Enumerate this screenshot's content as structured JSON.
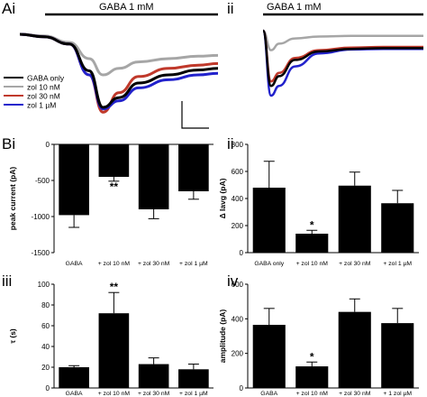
{
  "panel_labels": {
    "ai": "Ai",
    "aii": "ii",
    "bi": "Bi",
    "bii": "ii",
    "biii": "iii",
    "biv": "iv"
  },
  "colors": {
    "gaba_only": "#000000",
    "zol_10nm": "#a6a6a6",
    "zol_30nm": "#c0392b",
    "zol_1um": "#2222cc"
  },
  "chart_data": [
    {
      "id": "Ai",
      "type": "line",
      "title": "GABA 1 mM",
      "legend_position": "bottom-left",
      "legend": [
        "GABA only",
        "zol 10 nM",
        "zol 30 nM",
        "zol 1 µM"
      ],
      "series": [
        {
          "name": "GABA only",
          "color": "#000000",
          "x": [
            0,
            0.12,
            0.25,
            0.35,
            0.42,
            0.5,
            0.6,
            0.75,
            0.9,
            1.0
          ],
          "y": [
            0,
            -0.03,
            -0.12,
            -0.45,
            -0.9,
            -0.78,
            -0.6,
            -0.5,
            -0.44,
            -0.42
          ]
        },
        {
          "name": "zol 10 nM",
          "color": "#a6a6a6",
          "x": [
            0,
            0.12,
            0.25,
            0.35,
            0.42,
            0.5,
            0.6,
            0.75,
            0.9,
            1.0
          ],
          "y": [
            0,
            -0.02,
            -0.1,
            -0.3,
            -0.5,
            -0.42,
            -0.34,
            -0.3,
            -0.27,
            -0.26
          ]
        },
        {
          "name": "zol 30 nM",
          "color": "#c0392b",
          "x": [
            0,
            0.12,
            0.25,
            0.35,
            0.42,
            0.5,
            0.6,
            0.75,
            0.9,
            1.0
          ],
          "y": [
            0,
            -0.03,
            -0.12,
            -0.5,
            -0.96,
            -0.72,
            -0.52,
            -0.42,
            -0.38,
            -0.36
          ]
        },
        {
          "name": "zol 1 µM",
          "color": "#2222cc",
          "x": [
            0,
            0.12,
            0.25,
            0.35,
            0.42,
            0.5,
            0.6,
            0.75,
            0.9,
            1.0
          ],
          "y": [
            0,
            -0.03,
            -0.12,
            -0.5,
            -0.92,
            -0.82,
            -0.66,
            -0.56,
            -0.5,
            -0.48
          ]
        }
      ]
    },
    {
      "id": "Aii",
      "type": "line",
      "title": "GABA 1 mM",
      "series": [
        {
          "name": "GABA only",
          "color": "#000000",
          "x": [
            0,
            0.05,
            0.1,
            0.2,
            0.35,
            0.55,
            0.75,
            1.0
          ],
          "y": [
            0,
            -0.85,
            -0.7,
            -0.45,
            -0.32,
            -0.28,
            -0.27,
            -0.27
          ]
        },
        {
          "name": "zol 10 nM",
          "color": "#a6a6a6",
          "x": [
            0,
            0.05,
            0.1,
            0.2,
            0.35,
            0.55,
            0.75,
            1.0
          ],
          "y": [
            0,
            -0.3,
            -0.2,
            -0.12,
            -0.09,
            -0.08,
            -0.08,
            -0.08
          ]
        },
        {
          "name": "zol 30 nM",
          "color": "#c0392b",
          "x": [
            0,
            0.05,
            0.1,
            0.2,
            0.35,
            0.55,
            0.75,
            1.0
          ],
          "y": [
            0,
            -0.78,
            -0.65,
            -0.42,
            -0.3,
            -0.26,
            -0.25,
            -0.25
          ]
        },
        {
          "name": "zol 1 µM",
          "color": "#2222cc",
          "x": [
            0,
            0.05,
            0.1,
            0.2,
            0.35,
            0.55,
            0.75,
            1.0
          ],
          "y": [
            0,
            -1.0,
            -0.85,
            -0.55,
            -0.35,
            -0.29,
            -0.28,
            -0.28
          ]
        }
      ]
    },
    {
      "id": "Bi",
      "type": "bar",
      "categories": [
        "GABA",
        "+ zol 10 nM",
        "+ zol 30 nM",
        "+ zol 1 µM"
      ],
      "values": [
        -980,
        -450,
        -900,
        -650
      ],
      "errors": [
        170,
        60,
        130,
        110
      ],
      "ylabel": "peak current (pA)",
      "ylim": [
        -1500,
        0
      ],
      "yticks": [
        0,
        -500,
        -1000,
        -1500
      ],
      "ytick_labels": [
        "0",
        "-500",
        "-1000",
        "-1500"
      ],
      "significance": [
        "",
        "**",
        "",
        ""
      ]
    },
    {
      "id": "Bii",
      "type": "bar",
      "categories": [
        "GABA only",
        "+ zol 10 nM",
        "+ zol 30 nM",
        "+ zol 1 µM"
      ],
      "values": [
        480,
        140,
        495,
        365
      ],
      "errors": [
        195,
        25,
        100,
        95
      ],
      "ylabel": "Δ Iavg (pA)",
      "ylim": [
        0,
        800
      ],
      "yticks": [
        0,
        200,
        400,
        600,
        800
      ],
      "ytick_labels": [
        "0",
        "200",
        "400",
        "600",
        "800"
      ],
      "significance": [
        "",
        "*",
        "",
        ""
      ]
    },
    {
      "id": "Biii",
      "type": "bar",
      "categories": [
        "GABA",
        "+ zol 10 nM",
        "+ zol 30 nM",
        "+ zol 1 µM"
      ],
      "values": [
        20,
        72,
        23,
        18
      ],
      "errors": [
        1.5,
        20,
        6,
        5
      ],
      "ylabel": "τ (s)",
      "ylim": [
        0,
        100
      ],
      "yticks": [
        0,
        20,
        40,
        60,
        80,
        100
      ],
      "ytick_labels": [
        "0",
        "20",
        "40",
        "60",
        "80",
        "100"
      ],
      "significance": [
        "",
        "**",
        "",
        ""
      ]
    },
    {
      "id": "Biv",
      "type": "bar",
      "categories": [
        "GABA",
        "+ zol 10 nM",
        "+ zol 30 nM",
        "+ 1 zol µM"
      ],
      "values": [
        365,
        125,
        440,
        375
      ],
      "errors": [
        95,
        25,
        75,
        85
      ],
      "ylabel": "amplitude (pA)",
      "ylim": [
        0,
        600
      ],
      "yticks": [
        0,
        200,
        400,
        600
      ],
      "ytick_labels": [
        "0",
        "200",
        "400",
        "600"
      ],
      "significance": [
        "",
        "*",
        "",
        ""
      ]
    }
  ]
}
